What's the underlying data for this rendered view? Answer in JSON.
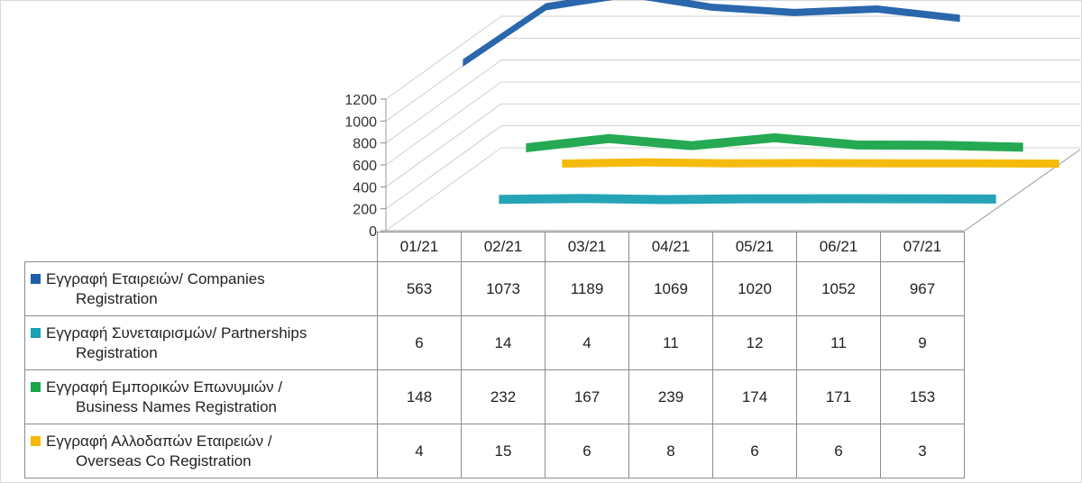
{
  "chart_data": {
    "type": "line",
    "categories": [
      "01/21",
      "02/21",
      "03/21",
      "04/21",
      "05/21",
      "06/21",
      "07/21"
    ],
    "ylim": [
      0,
      1200
    ],
    "yticks": [
      "0",
      "200",
      "400",
      "600",
      "800",
      "1000",
      "1200"
    ],
    "grid": true,
    "legend": "table",
    "series": [
      {
        "name_line1": "Εγγραφή Εταιρειών/ Companies",
        "name_line2": "Registration",
        "color": "#1f5fa8",
        "values": [
          563,
          1073,
          1189,
          1069,
          1020,
          1052,
          967
        ]
      },
      {
        "name_line1": "Εγγραφή Συνεταιρισμών/ Partnerships",
        "name_line2": "Registration",
        "color": "#1aa0b4",
        "values": [
          6,
          14,
          4,
          11,
          12,
          11,
          9
        ]
      },
      {
        "name_line1": "Εγγραφή Εμπορικών Επωνυμιών /",
        "name_line2": "Business Names Registration",
        "color": "#1aa64a",
        "values": [
          148,
          232,
          167,
          239,
          174,
          171,
          153
        ]
      },
      {
        "name_line1": "Εγγραφή Αλλοδαπών Εταιρειών /",
        "name_line2": "Overseas Co Registration",
        "color": "#f5b800",
        "values": [
          4,
          15,
          6,
          8,
          6,
          6,
          3
        ]
      }
    ]
  }
}
